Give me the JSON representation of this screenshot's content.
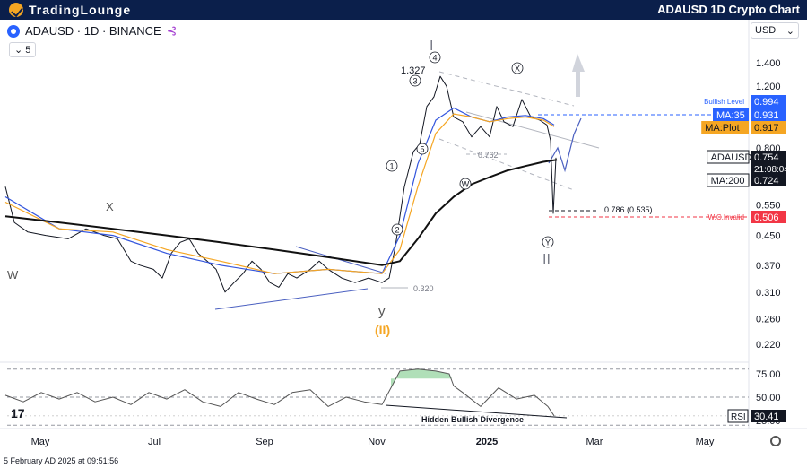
{
  "header": {
    "brand": "TradingLounge",
    "title": "ADAUSD 1D Crypto Chart"
  },
  "toolbar": {
    "symbol": "ADAUSD · 1D · BINANCE",
    "legend_count": "5",
    "currency": "USD"
  },
  "footer": {
    "date": "5 February AD 2025 at 09:51:56"
  },
  "colors": {
    "up": "#131722",
    "price_line": "#131722",
    "ma35": "#3355dd",
    "ma_plot": "#f5a623",
    "ma200": "#111111",
    "rsi": "#555555",
    "invalid": "#f23645",
    "bullish": "#2962ff",
    "rsi_fill": "#8ed19a"
  },
  "chart_data": {
    "type": "line",
    "price_axis": {
      "scale": "log",
      "ticks": [
        "1.400",
        "1.200",
        "1.000",
        "0.800",
        "0.650",
        "0.550",
        "0.450",
        "0.370",
        "0.310",
        "0.260",
        "0.220"
      ]
    },
    "time_axis": {
      "ticks": [
        "May",
        "Jul",
        "Sep",
        "Nov",
        "2025",
        "Mar",
        "May"
      ]
    },
    "series": [
      {
        "name": "ADAUSD",
        "approx_path": [
          [
            0,
            0.62
          ],
          [
            10,
            0.49
          ],
          [
            25,
            0.46
          ],
          [
            45,
            0.45
          ],
          [
            70,
            0.44
          ],
          [
            90,
            0.47
          ],
          [
            110,
            0.45
          ],
          [
            125,
            0.44
          ],
          [
            140,
            0.38
          ],
          [
            150,
            0.37
          ],
          [
            165,
            0.36
          ],
          [
            175,
            0.34
          ],
          [
            185,
            0.4
          ],
          [
            195,
            0.43
          ],
          [
            205,
            0.44
          ],
          [
            215,
            0.4
          ],
          [
            225,
            0.38
          ],
          [
            235,
            0.36
          ],
          [
            245,
            0.31
          ],
          [
            255,
            0.33
          ],
          [
            265,
            0.35
          ],
          [
            275,
            0.38
          ],
          [
            285,
            0.36
          ],
          [
            295,
            0.33
          ],
          [
            305,
            0.32
          ],
          [
            315,
            0.35
          ],
          [
            325,
            0.34
          ],
          [
            340,
            0.36
          ],
          [
            350,
            0.38
          ],
          [
            360,
            0.36
          ],
          [
            375,
            0.34
          ],
          [
            390,
            0.33
          ],
          [
            405,
            0.34
          ],
          [
            420,
            0.33
          ],
          [
            428,
            0.34
          ],
          [
            435,
            0.42
          ],
          [
            445,
            0.62
          ],
          [
            455,
            0.78
          ],
          [
            462,
            0.82
          ],
          [
            470,
            1.05
          ],
          [
            478,
            1.12
          ],
          [
            485,
            1.28
          ],
          [
            492,
            1.2
          ],
          [
            500,
            0.98
          ],
          [
            510,
            0.95
          ],
          [
            520,
            0.86
          ],
          [
            530,
            0.92
          ],
          [
            540,
            0.86
          ],
          [
            548,
            1.05
          ],
          [
            556,
            0.95
          ],
          [
            566,
            0.92
          ],
          [
            576,
            1.1
          ],
          [
            586,
            0.98
          ],
          [
            596,
            0.96
          ],
          [
            604,
            0.93
          ],
          [
            608,
            0.84
          ],
          [
            611,
            0.52
          ],
          [
            614,
            0.75
          ]
        ]
      },
      {
        "name": "MA:35",
        "approx_path": [
          [
            0,
            0.58
          ],
          [
            60,
            0.47
          ],
          [
            120,
            0.45
          ],
          [
            180,
            0.4
          ],
          [
            240,
            0.37
          ],
          [
            300,
            0.35
          ],
          [
            360,
            0.36
          ],
          [
            420,
            0.35
          ],
          [
            440,
            0.45
          ],
          [
            460,
            0.72
          ],
          [
            480,
            0.96
          ],
          [
            500,
            1.04
          ],
          [
            520,
            0.98
          ],
          [
            540,
            0.95
          ],
          [
            560,
            0.98
          ],
          [
            580,
            0.99
          ],
          [
            600,
            0.97
          ],
          [
            612,
            0.93
          ]
        ]
      },
      {
        "name": "MA:Plot",
        "approx_path": [
          [
            0,
            0.56
          ],
          [
            60,
            0.47
          ],
          [
            120,
            0.46
          ],
          [
            180,
            0.41
          ],
          [
            240,
            0.38
          ],
          [
            300,
            0.35
          ],
          [
            360,
            0.36
          ],
          [
            420,
            0.35
          ],
          [
            440,
            0.41
          ],
          [
            460,
            0.62
          ],
          [
            480,
            0.88
          ],
          [
            500,
            1.0
          ],
          [
            520,
            0.98
          ],
          [
            540,
            0.95
          ],
          [
            560,
            0.97
          ],
          [
            580,
            0.98
          ],
          [
            600,
            0.96
          ],
          [
            612,
            0.92
          ]
        ]
      },
      {
        "name": "MA:200",
        "approx_path": [
          [
            0,
            0.51
          ],
          [
            60,
            0.49
          ],
          [
            120,
            0.47
          ],
          [
            180,
            0.45
          ],
          [
            240,
            0.43
          ],
          [
            300,
            0.41
          ],
          [
            360,
            0.39
          ],
          [
            420,
            0.37
          ],
          [
            440,
            0.38
          ],
          [
            460,
            0.44
          ],
          [
            480,
            0.52
          ],
          [
            500,
            0.58
          ],
          [
            520,
            0.63
          ],
          [
            540,
            0.66
          ],
          [
            560,
            0.69
          ],
          [
            580,
            0.71
          ],
          [
            600,
            0.73
          ],
          [
            615,
            0.74
          ]
        ]
      }
    ],
    "price_labels": [
      {
        "name": "Bullish Level",
        "label": "Bullish Level",
        "value": "0.994"
      },
      {
        "name": "MA:35",
        "label": "MA:35",
        "value": "0.931"
      },
      {
        "name": "MA:Plot",
        "label": "MA:Plot",
        "value": "0.917"
      },
      {
        "name": "ADAUSD",
        "label": "ADAUSD",
        "value": "0.754",
        "countdown": "21:08:04"
      },
      {
        "name": "MA:200",
        "label": "MA:200",
        "value": "0.724"
      },
      {
        "name": "W.C.Invalid",
        "label": "W.C.Invalid",
        "value": "0.506"
      }
    ],
    "annotations": [
      "1.327",
      "0.762",
      "0.786 (0.535)",
      "0.320",
      "W",
      "X",
      "I",
      "II",
      "y",
      "(II)",
      "1",
      "2",
      "3",
      "4",
      "5",
      "W",
      "X",
      "Y"
    ],
    "rsi": {
      "ticks": [
        "75.00",
        "50.00",
        "25.00"
      ],
      "value": "30.41",
      "label": "RSI",
      "divergence_label": "Hidden Bullish Divergence",
      "approx_path": [
        [
          0,
          52
        ],
        [
          20,
          45
        ],
        [
          40,
          55
        ],
        [
          60,
          48
        ],
        [
          80,
          55
        ],
        [
          100,
          45
        ],
        [
          120,
          50
        ],
        [
          140,
          42
        ],
        [
          160,
          55
        ],
        [
          180,
          48
        ],
        [
          200,
          58
        ],
        [
          220,
          45
        ],
        [
          240,
          40
        ],
        [
          260,
          55
        ],
        [
          280,
          48
        ],
        [
          300,
          42
        ],
        [
          320,
          55
        ],
        [
          340,
          58
        ],
        [
          360,
          40
        ],
        [
          380,
          50
        ],
        [
          400,
          45
        ],
        [
          420,
          42
        ],
        [
          430,
          60
        ],
        [
          440,
          78
        ],
        [
          460,
          80
        ],
        [
          480,
          78
        ],
        [
          495,
          75
        ],
        [
          500,
          62
        ],
        [
          510,
          55
        ],
        [
          530,
          40
        ],
        [
          550,
          60
        ],
        [
          570,
          48
        ],
        [
          590,
          52
        ],
        [
          605,
          40
        ],
        [
          612,
          30
        ]
      ]
    }
  }
}
